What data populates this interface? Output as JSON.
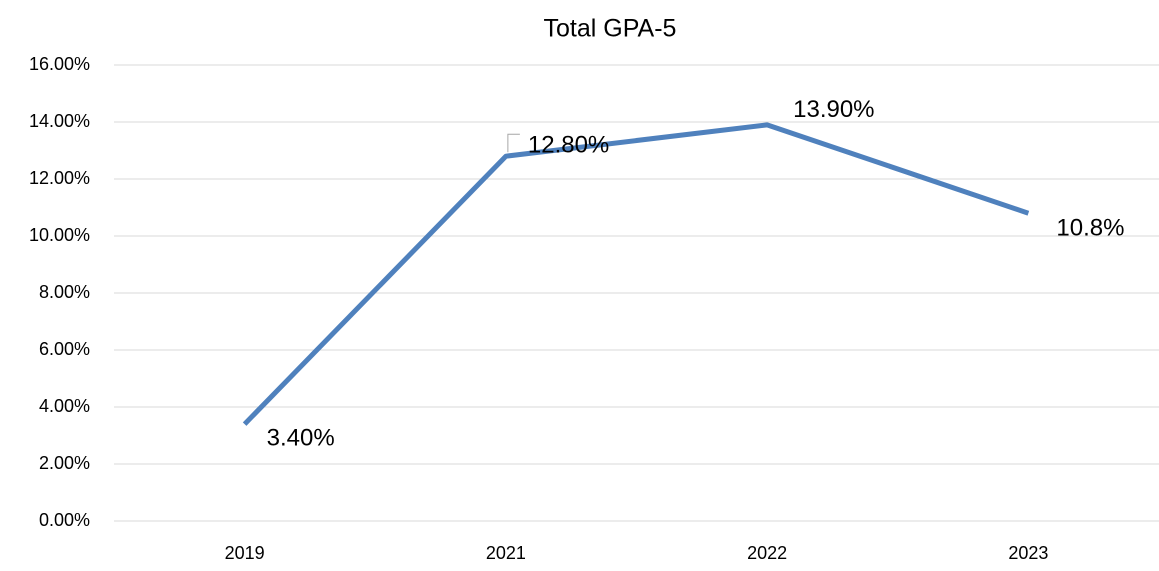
{
  "chart_data": {
    "type": "line",
    "title": "Total GPA-5",
    "categories": [
      "2019",
      "2021",
      "2022",
      "2023"
    ],
    "series": [
      {
        "name": "Total GPA-5",
        "color": "#4f81bd",
        "values": [
          3.4,
          12.8,
          13.9,
          10.8
        ],
        "value_labels": [
          "3.40%",
          "12.80%",
          "13.90%",
          "10.8%"
        ]
      }
    ],
    "ylim": [
      0,
      16
    ],
    "yticks": [
      {
        "value": 0,
        "label": "0.00%"
      },
      {
        "value": 2,
        "label": "2.00%"
      },
      {
        "value": 4,
        "label": "4.00%"
      },
      {
        "value": 6,
        "label": "6.00%"
      },
      {
        "value": 8,
        "label": "8.00%"
      },
      {
        "value": 10,
        "label": "10.00%"
      },
      {
        "value": 12,
        "label": "12.00%"
      },
      {
        "value": 14,
        "label": "14.00%"
      },
      {
        "value": 16,
        "label": "16.00%"
      }
    ],
    "grid": true
  }
}
